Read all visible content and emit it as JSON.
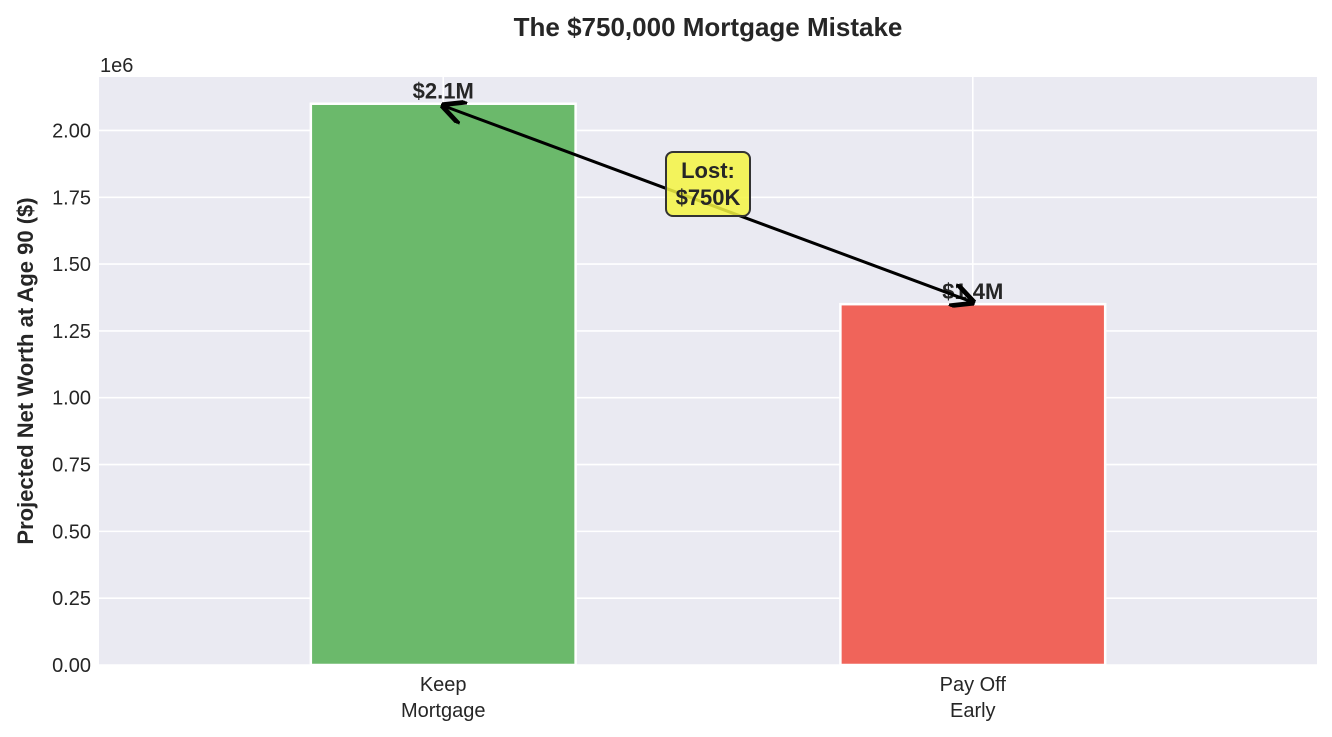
{
  "chart_data": {
    "type": "bar",
    "title": "The $750,000 Mortgage Mistake",
    "xlabel": "",
    "ylabel": "Projected Net Worth at Age 90 ($)",
    "y_offset_label": "1e6",
    "categories": [
      [
        "Keep",
        "Mortgage"
      ],
      [
        "Pay Off",
        "Early"
      ]
    ],
    "values": [
      2100000,
      1350000
    ],
    "colors": [
      "#6bb96b",
      "#f0645a"
    ],
    "data_labels": [
      "$2.1M",
      "$1.4M"
    ],
    "ylim": [
      0,
      2200000
    ],
    "yticks": [
      0,
      250000,
      500000,
      750000,
      1000000,
      1250000,
      1500000,
      1750000,
      2000000
    ],
    "ytick_labels": [
      "0.00",
      "0.25",
      "0.50",
      "0.75",
      "1.00",
      "1.25",
      "1.50",
      "1.75",
      "2.00"
    ],
    "grid": true,
    "annotation": {
      "lines": [
        "Lost:",
        "$750K"
      ],
      "box_color": "#f5f542",
      "arrow_from_category": 0,
      "arrow_to_category": 1
    }
  }
}
